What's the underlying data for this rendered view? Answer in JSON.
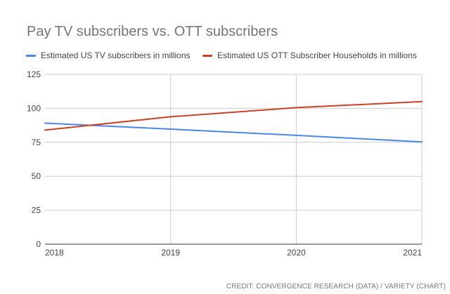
{
  "chart_data": {
    "type": "line",
    "title": "Pay TV subscribers vs. OTT subscribers",
    "x": [
      "2018",
      "2019",
      "2020",
      "2021"
    ],
    "series": [
      {
        "name": "Estimated US TV subscribers in millions",
        "color": "#4a86e8",
        "values": [
          89.1,
          84.7,
          80.1,
          75.3
        ]
      },
      {
        "name": "Estimated US OTT Subscriber Households in millions",
        "color": "#cc4125",
        "values": [
          84.0,
          93.8,
          100.5,
          105.0
        ]
      }
    ],
    "y_ticks": [
      "0",
      "25",
      "50",
      "75",
      "100",
      "125"
    ],
    "ylim": [
      0,
      125
    ],
    "grid": true,
    "legend_position": "top-left",
    "credit": "CREDIT: CONVERGENCE RESEARCH (DATA) / VARIETY (CHART)"
  }
}
